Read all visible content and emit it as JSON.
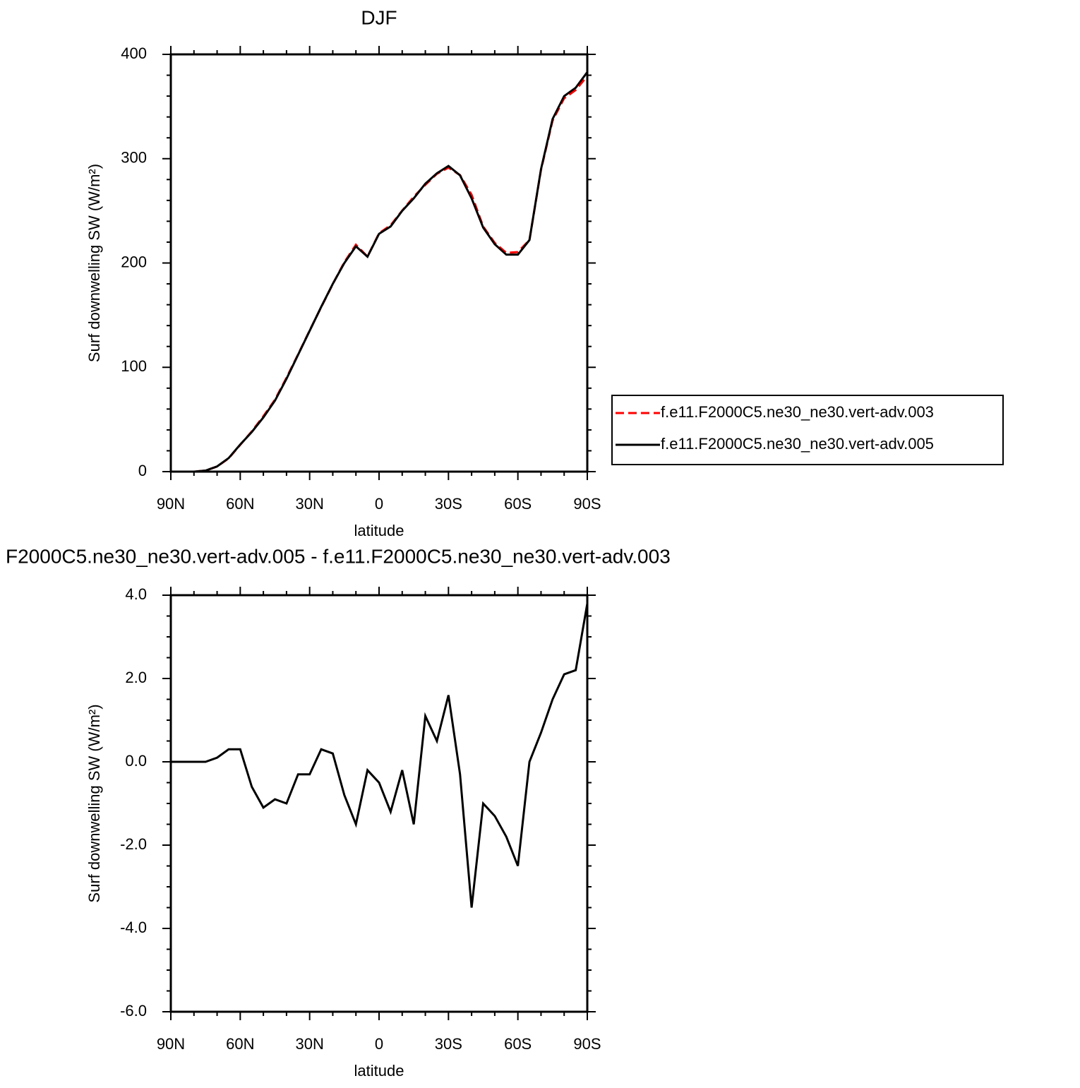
{
  "chart_data": [
    {
      "type": "line",
      "title": "DJF",
      "xlabel": "latitude",
      "ylabel": "Surf downwelling SW (W/m²)",
      "x": [
        90,
        85,
        80,
        75,
        70,
        65,
        60,
        55,
        50,
        45,
        40,
        35,
        30,
        25,
        20,
        15,
        10,
        5,
        0,
        -5,
        -10,
        -15,
        -20,
        -25,
        -30,
        -35,
        -40,
        -45,
        -50,
        -55,
        -60,
        -65,
        -70,
        -75,
        -80,
        -85,
        -90
      ],
      "xlim": [
        90,
        -90
      ],
      "xticks": [
        {
          "value": 90,
          "label": "90N"
        },
        {
          "value": 60,
          "label": "60N"
        },
        {
          "value": 30,
          "label": "30N"
        },
        0,
        {
          "value": -30,
          "label": "30S"
        },
        {
          "value": -60,
          "label": "60S"
        },
        {
          "value": -90,
          "label": "90S"
        }
      ],
      "xminorticks": [
        80,
        70,
        50,
        40,
        20,
        10,
        -10,
        -20,
        -40,
        -50,
        -70,
        -80
      ],
      "ylim": [
        0,
        400
      ],
      "yticks": [
        0,
        100,
        200,
        300,
        400
      ],
      "yminorticks": [
        20,
        40,
        60,
        80,
        120,
        140,
        160,
        180,
        220,
        240,
        260,
        280,
        320,
        340,
        360,
        380
      ],
      "legend": "right",
      "series": [
        {
          "name": "f.e11.F2000C5.ne30_ne30.vert-adv.003",
          "color": "#ff0000",
          "dashed": true,
          "values": [
            0,
            0,
            0,
            1,
            4.9,
            12.7,
            25.7,
            38.6,
            53.1,
            68.9,
            90,
            112.3,
            135.3,
            157.7,
            179.8,
            200.8,
            217.5,
            206.2,
            228.5,
            236.2,
            250.2,
            263.5,
            274.9,
            285.5,
            291.4,
            284.3,
            265.5,
            235,
            219.3,
            209.8,
            210.5,
            222,
            289.3,
            336.5,
            357.9,
            365.8,
            379.2
          ]
        },
        {
          "name": "f.e11.F2000C5.ne30_ne30.vert-adv.005",
          "color": "#000000",
          "dashed": false,
          "values": [
            0,
            0,
            0,
            1,
            5,
            13,
            26,
            38,
            52,
            68,
            89,
            112,
            135,
            158,
            180,
            200,
            216,
            206,
            228,
            235,
            250,
            262,
            276,
            286,
            293,
            284,
            262,
            234,
            218,
            208,
            208,
            222,
            290,
            338,
            360,
            368,
            383
          ]
        }
      ]
    },
    {
      "type": "line",
      "title": "F2000C5.ne30_ne30.vert-adv.005 - f.e11.F2000C5.ne30_ne30.vert-adv.003",
      "xlabel": "latitude",
      "ylabel": "Surf downwelling SW (W/m²)",
      "x": [
        90,
        85,
        80,
        75,
        70,
        65,
        60,
        55,
        50,
        45,
        40,
        35,
        30,
        25,
        20,
        15,
        10,
        5,
        0,
        -5,
        -10,
        -15,
        -20,
        -25,
        -30,
        -35,
        -40,
        -45,
        -50,
        -55,
        -60,
        -65,
        -70,
        -75,
        -80,
        -85,
        -90
      ],
      "xlim": [
        90,
        -90
      ],
      "xticks": [
        {
          "value": 90,
          "label": "90N"
        },
        {
          "value": 60,
          "label": "60N"
        },
        {
          "value": 30,
          "label": "30N"
        },
        0,
        {
          "value": -30,
          "label": "30S"
        },
        {
          "value": -60,
          "label": "60S"
        },
        {
          "value": -90,
          "label": "90S"
        }
      ],
      "xminorticks": [
        80,
        70,
        50,
        40,
        20,
        10,
        -10,
        -20,
        -40,
        -50,
        -70,
        -80
      ],
      "ylim": [
        -6,
        4
      ],
      "yticks": [
        {
          "value": -6,
          "label": "-6.0"
        },
        {
          "value": -4,
          "label": "-4.0"
        },
        {
          "value": -2,
          "label": "-2.0"
        },
        {
          "value": 0,
          "label": "0.0"
        },
        {
          "value": 2,
          "label": "2.0"
        },
        {
          "value": 4,
          "label": "4.0"
        }
      ],
      "yminorticks": [
        3.5,
        3,
        2.5,
        1.5,
        1,
        0.5,
        -0.5,
        -1,
        -1.5,
        -2.5,
        -3,
        -3.5,
        -4.5,
        -5,
        -5.5
      ],
      "color": "#000000",
      "values": [
        0,
        0,
        0,
        0,
        0.1,
        0.3,
        0.3,
        -0.6,
        -1.1,
        -0.9,
        -1.0,
        -0.3,
        -0.3,
        0.3,
        0.2,
        -0.8,
        -1.5,
        -0.2,
        -0.5,
        -1.2,
        -0.2,
        -1.5,
        1.1,
        0.5,
        1.6,
        -0.3,
        -3.5,
        -1.0,
        -1.3,
        -1.8,
        -2.5,
        0.0,
        0.7,
        1.5,
        2.1,
        2.2,
        3.8
      ]
    }
  ]
}
